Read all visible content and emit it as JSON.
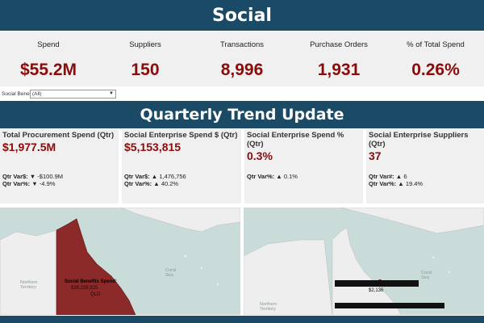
{
  "header": {
    "title": "Social"
  },
  "kpis": [
    {
      "label": "Spend",
      "value": "$55.2M"
    },
    {
      "label": "Suppliers",
      "value": "150"
    },
    {
      "label": "Transactions",
      "value": "8,996"
    },
    {
      "label": "Purchase Orders",
      "value": "1,931"
    },
    {
      "label": "% of Total Spend",
      "value": "0.26%"
    }
  ],
  "filter": {
    "label": "Social Benefit",
    "selected": "(All)"
  },
  "section": {
    "title": "Quarterly Trend Update"
  },
  "cards": [
    {
      "title": "Total Procurement Spend (Qtr)",
      "value": "$1,977.5M",
      "var1_label": "Qtr Var$:",
      "var1_arrow": "▼",
      "var1_value": "-$100.9M",
      "var2_label": "Qtr Var%:",
      "var2_arrow": "▼",
      "var2_value": "-4.9%"
    },
    {
      "title": "Social Enterprise Spend $ (Qtr)",
      "value": "$5,153,815",
      "var1_label": "Qtr Var$:",
      "var1_arrow": "▲",
      "var1_value": "1,476,756",
      "var2_label": "Qtr Var%:",
      "var2_arrow": "▲",
      "var2_value": "40.2%"
    },
    {
      "title": "Social Enterprise Spend % (Qtr)",
      "value": "0.3%",
      "var1_label": "Qtr Var%:",
      "var1_arrow": "▲",
      "var1_value": "0.1%"
    },
    {
      "title": "Social Enterprise Suppliers (Qtr)",
      "value": "37",
      "var1_label": "Qtr Var#:",
      "var1_arrow": "▲",
      "var1_value": "6",
      "var2_label": "Qtr Var%:",
      "var2_arrow": "▲",
      "var2_value": "19.4%"
    }
  ],
  "map_left": {
    "tooltip_title": "Social Benefits Spend:",
    "tooltip_value": "$39,239,825",
    "tooltip_region": "QLD",
    "label_territory": "Northern\nTerritory",
    "label_sea": "Coral\nSea"
  },
  "map_right": {
    "point_value": "$2,136",
    "label_territory": "Northern\nTerritory",
    "label_sea": "Coral\nSea"
  },
  "colors": {
    "brand": "#1b4a66",
    "value_red": "#8b0a0a",
    "qld_fill": "#8c2a2a",
    "water": "#c9dcd9",
    "land": "#eeeeee"
  }
}
